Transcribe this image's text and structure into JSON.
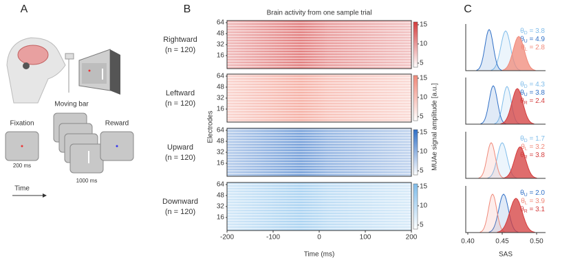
{
  "panel_a": {
    "label": "A",
    "fixation": "Fixation",
    "moving_bar": "Moving bar",
    "reward": "Reward",
    "fix_time": "200 ms",
    "bar_time": "1000 ms",
    "time_axis": "Time"
  },
  "panel_b": {
    "label": "B",
    "title": "Brain activity from one sample trial",
    "ylabel": "Electrodes",
    "colorbar_label": "MUAe signal amplitude [a.u.]",
    "xlabel": "Time (ms)",
    "xticks": [
      -200,
      -100,
      0,
      100,
      200
    ],
    "yticks": [
      16,
      32,
      48,
      64
    ],
    "cbar_ticks": [
      5,
      10,
      15
    ],
    "conditions": [
      {
        "name": "Rightward",
        "n": "(n = 120)",
        "color": "#d43c3c"
      },
      {
        "name": "Leftward",
        "n": "(n = 120)",
        "color": "#f08878"
      },
      {
        "name": "Upward",
        "n": "(n = 120)",
        "color": "#2f6fc6"
      },
      {
        "name": "Downward",
        "n": "(n = 120)",
        "color": "#7fbcea"
      }
    ]
  },
  "panel_c": {
    "label": "C",
    "xlabel": "SAS",
    "xticks": [
      "0.40",
      "0.45",
      "0.50"
    ],
    "symbol": "θ",
    "rows": [
      [
        {
          "sub": "D",
          "rest": " = 3.8",
          "color": "#7fbcea"
        },
        {
          "sub": "U",
          "rest": " = 4.9",
          "color": "#2f6fc6"
        },
        {
          "sub": "L",
          "rest": " = 2.8",
          "color": "#f08878"
        }
      ],
      [
        {
          "sub": "D",
          "rest": " = 4.3",
          "color": "#7fbcea"
        },
        {
          "sub": "U",
          "rest": " = 3.8",
          "color": "#2f6fc6"
        },
        {
          "sub": "R",
          "rest": " = 2.4",
          "color": "#d43c3c"
        }
      ],
      [
        {
          "sub": "D",
          "rest": " = 1.7",
          "color": "#7fbcea"
        },
        {
          "sub": "L",
          "rest": " = 3.2",
          "color": "#f08878"
        },
        {
          "sub": "R",
          "rest": " = 3.8",
          "color": "#d43c3c"
        }
      ],
      [
        {
          "sub": "U",
          "rest": " = 2.0",
          "color": "#2f6fc6"
        },
        {
          "sub": "L",
          "rest": " = 3.9",
          "color": "#f08878"
        },
        {
          "sub": "R",
          "rest": " = 3.1",
          "color": "#d43c3c"
        }
      ]
    ]
  }
}
